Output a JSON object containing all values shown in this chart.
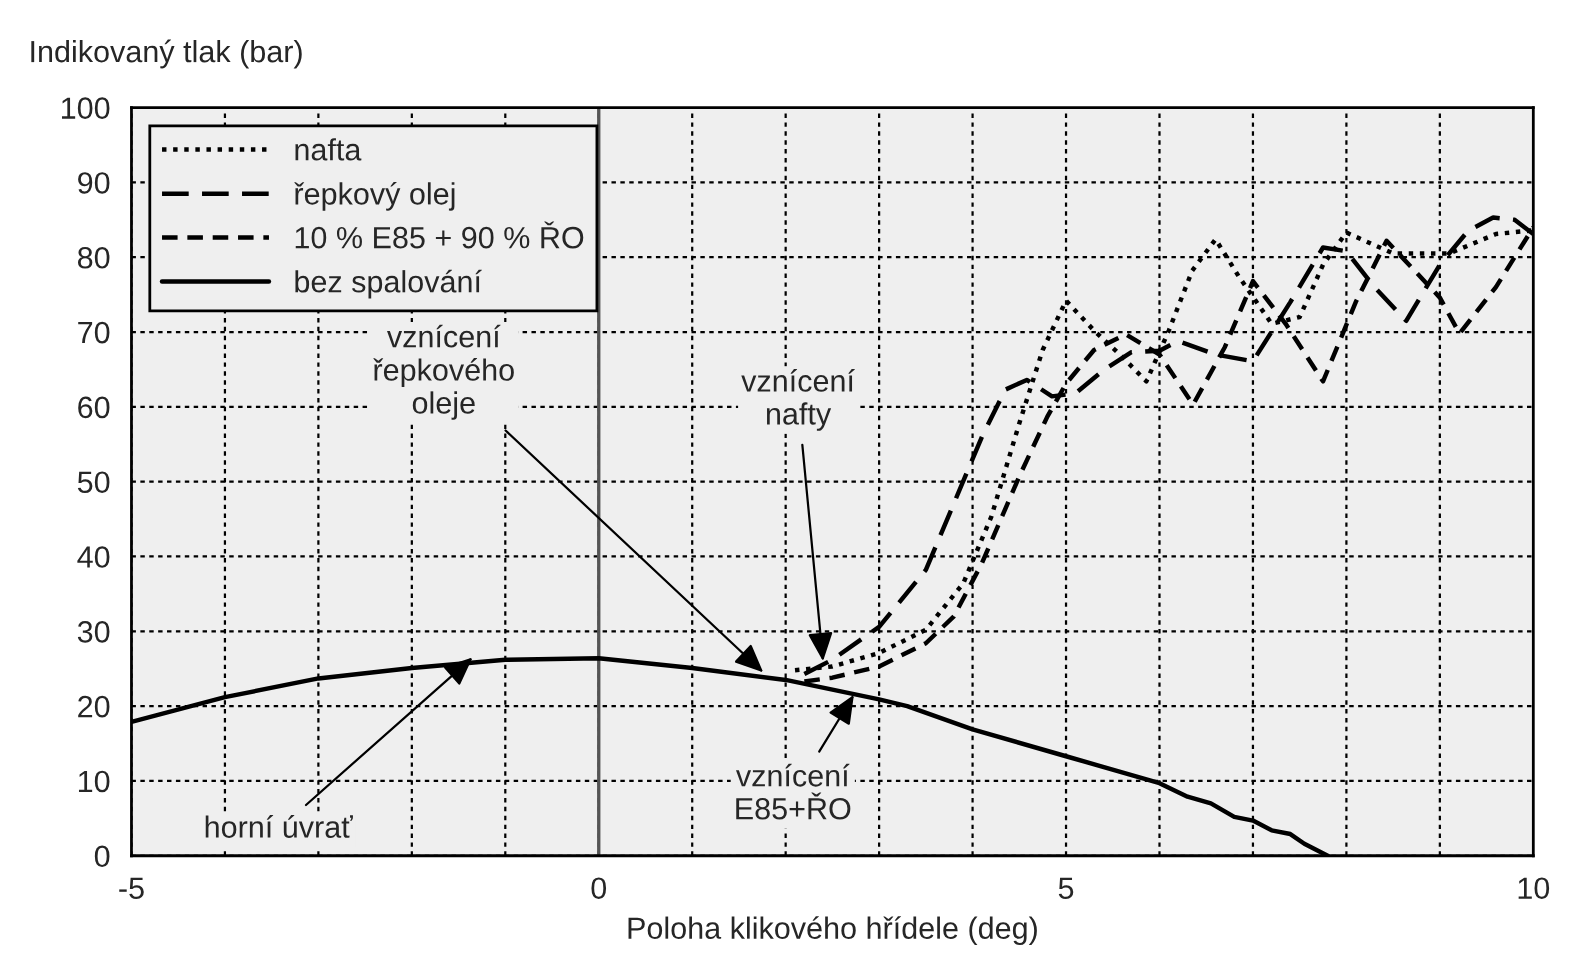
{
  "chart_data": {
    "type": "line",
    "xlabel": "Poloha klikového hřídele (deg)",
    "ylabel": "Indikovaný tlak (bar)",
    "xlim": [
      -5,
      10
    ],
    "ylim": [
      0,
      100
    ],
    "xticks": [
      -5,
      {
        "value": -4,
        "label": null
      },
      {
        "value": -3,
        "label": null
      },
      {
        "value": -2,
        "label": null
      },
      {
        "value": -1,
        "label": null
      },
      0,
      {
        "value": 1,
        "label": null
      },
      {
        "value": 2,
        "label": null
      },
      {
        "value": 3,
        "label": null
      },
      {
        "value": 4,
        "label": null
      },
      5,
      {
        "value": 6,
        "label": null
      },
      {
        "value": 7,
        "label": null
      },
      {
        "value": 8,
        "label": null
      },
      {
        "value": 9,
        "label": null
      },
      10
    ],
    "yticks": [
      0,
      10,
      20,
      30,
      40,
      50,
      60,
      70,
      80,
      90,
      100
    ],
    "grid": true,
    "legend": "top left",
    "ref_lines": [
      {
        "axis": "x",
        "value": 0,
        "color": "#555555",
        "line_style": "solid"
      }
    ],
    "series": [
      {
        "name": "nafta",
        "color": "#000000",
        "line_style": "dotted",
        "x": [
          2.1,
          2.5,
          3,
          3.5,
          3.9,
          4.2,
          4.5,
          4.75,
          5.0,
          5.3,
          5.6,
          5.86,
          6.1,
          6.35,
          6.6,
          6.85,
          7.2,
          7.5,
          7.75,
          8.0,
          8.5,
          9.1,
          9.6,
          10
        ],
        "values": [
          24.8,
          25.3,
          27.1,
          30.2,
          36.4,
          45.3,
          57.8,
          67.6,
          74.2,
          70.2,
          66.7,
          63.4,
          70.2,
          78.2,
          82.4,
          77.4,
          71.1,
          72,
          79,
          83.3,
          80.5,
          80.5,
          83.1,
          83.6
        ]
      },
      {
        "name": "řepkový olej",
        "color": "#000000",
        "line_style": "dashed",
        "x": [
          2.2,
          2.5,
          3,
          3.5,
          3.8,
          4.1,
          4.35,
          4.58,
          4.85,
          5.1,
          5.4,
          5.7,
          6.0,
          6.2,
          6.6,
          7.0,
          7.4,
          7.75,
          8.0,
          8.3,
          8.64,
          9.0,
          9.3,
          9.57,
          9.8,
          10
        ],
        "values": [
          24.3,
          26.2,
          30.6,
          38.2,
          47.1,
          56,
          62.3,
          63.6,
          61.4,
          61.8,
          64.9,
          67.3,
          67.5,
          68.8,
          67,
          66.1,
          74,
          81.3,
          80.8,
          76,
          71.5,
          79,
          83.5,
          85.3,
          85,
          83.1
        ]
      },
      {
        "name": "10 % E85 + 90 % ŘO",
        "color": "#000000",
        "line_style": "dashed",
        "x": [
          2.2,
          2.5,
          3,
          3.5,
          3.8,
          4.1,
          4.5,
          4.8,
          5.0,
          5.3,
          5.64,
          6.0,
          6.36,
          6.7,
          7.0,
          7.35,
          7.75,
          8.1,
          8.43,
          9.0,
          9.21,
          9.6,
          10
        ],
        "values": [
          23.3,
          23.8,
          25.3,
          28.4,
          32,
          39.1,
          50.7,
          58.7,
          63.1,
          67.6,
          69.7,
          67,
          60.3,
          68,
          76.8,
          71.1,
          63.4,
          74,
          82.2,
          74.6,
          69.8,
          76,
          84
        ]
      },
      {
        "name": "bez spalování",
        "color": "#000000",
        "line_style": "solid",
        "x": [
          -5,
          -4,
          -3,
          -2,
          -1,
          0,
          1,
          2,
          3,
          3.3,
          4,
          5,
          6,
          6.3,
          6.55,
          6.8,
          7.0,
          7.2,
          7.4,
          7.55,
          7.8
        ],
        "values": [
          17.9,
          21.2,
          23.7,
          25.1,
          26.2,
          26.4,
          25.1,
          23.5,
          20.9,
          20,
          16.9,
          13.3,
          9.7,
          7.9,
          7.0,
          5.2,
          4.7,
          3.4,
          2.9,
          1.6,
          0
        ]
      }
    ],
    "annotations": [
      {
        "text": "vznícení\nřepkového\noleje",
        "x": 1.76,
        "y": 24.5
      },
      {
        "text": "vznícení\nnafty",
        "x": 2.4,
        "y": 26
      },
      {
        "text": "horní úvrať",
        "x": -1.35,
        "y": 26.5
      },
      {
        "text": "vznícení\nE85+ŘO",
        "x": 2.73,
        "y": 21.5
      }
    ]
  }
}
